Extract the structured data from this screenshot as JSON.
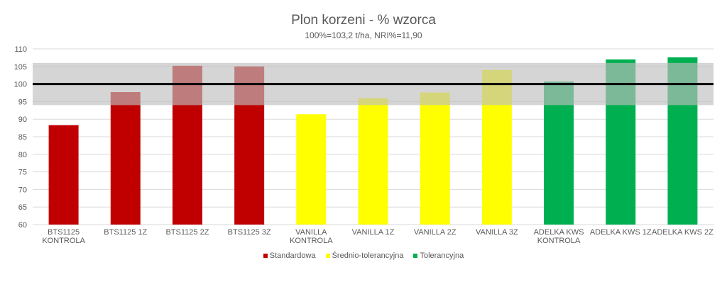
{
  "chart_data": {
    "type": "bar",
    "title": "Plon korzeni - % wzorca",
    "subtitle": "100%=103,2 t/ha, NRI%=11,90",
    "ylim": [
      60,
      110
    ],
    "yticks": [
      60,
      65,
      70,
      75,
      80,
      85,
      90,
      95,
      100,
      105,
      110
    ],
    "reference_line": 100,
    "band": [
      94,
      106
    ],
    "categories": [
      [
        "BTS1125",
        "KONTROLA"
      ],
      [
        "BTS1125 1Z"
      ],
      [
        "BTS1125 2Z"
      ],
      [
        "BTS1125 3Z"
      ],
      [
        "VANILLA",
        "KONTROLA"
      ],
      [
        "VANILLA 1Z"
      ],
      [
        "VANILLA 2Z"
      ],
      [
        "VANILLA 3Z"
      ],
      [
        "ADELKA KWS",
        "KONTROLA"
      ],
      [
        "ADELKA KWS 1Z"
      ],
      [
        "ADELKA KWS 2Z"
      ]
    ],
    "values": [
      88.3,
      97.7,
      105.2,
      105.0,
      91.4,
      96.0,
      97.6,
      104.0,
      100.7,
      107.0,
      107.6
    ],
    "groups": [
      0,
      0,
      0,
      0,
      1,
      1,
      1,
      1,
      2,
      2,
      2
    ],
    "legend": [
      {
        "name": "Standardowa",
        "color": "#c00000"
      },
      {
        "name": "Średnio-tolerancyjna",
        "color": "#ffff00"
      },
      {
        "name": "Tolerancyjna",
        "color": "#00b050"
      }
    ],
    "band_color": "#bfbfbf",
    "grid": true
  }
}
